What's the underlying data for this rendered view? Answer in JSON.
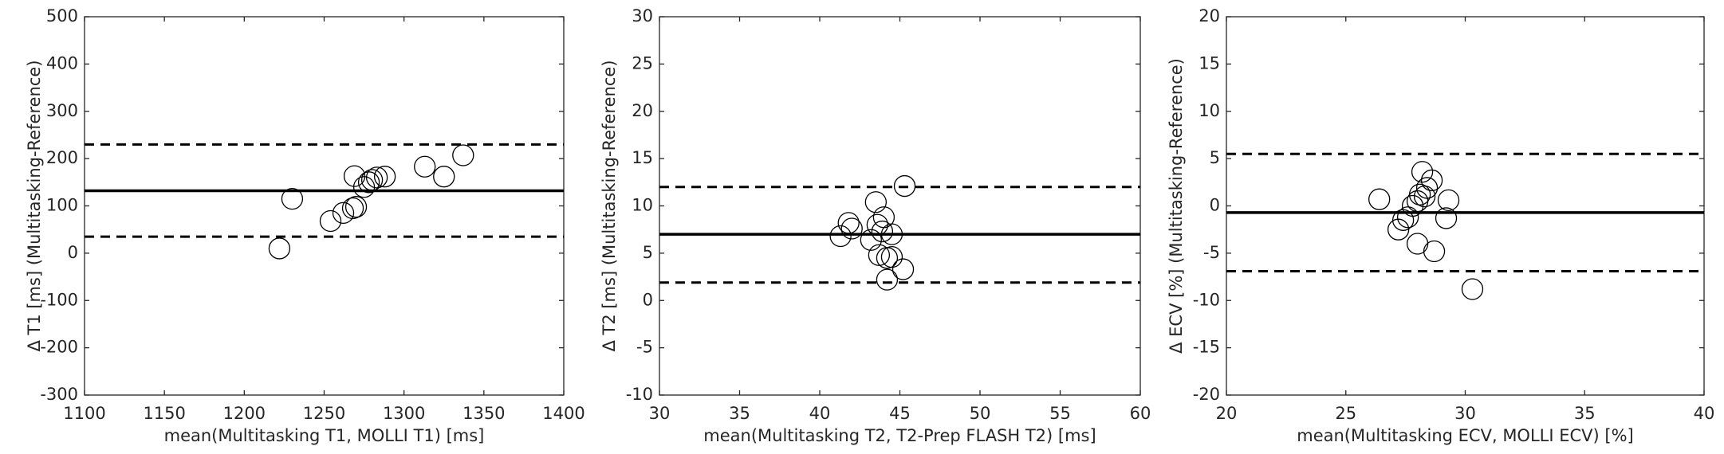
{
  "chart_data": [
    {
      "type": "scatter",
      "xlabel": "mean(Multitasking T1, MOLLI T1) [ms]",
      "ylabel": "Δ T1 [ms] (Multitasking-Reference)",
      "x": [
        1222,
        1230,
        1254,
        1262,
        1268,
        1270,
        1269,
        1275,
        1278,
        1280,
        1283,
        1288,
        1313,
        1325,
        1337
      ],
      "values": [
        10,
        115,
        68,
        85,
        95,
        98,
        163,
        140,
        150,
        155,
        160,
        162,
        183,
        162,
        207
      ],
      "mean": 132,
      "upper_loa": 230,
      "lower_loa": 35,
      "xlim": [
        1100,
        1400
      ],
      "xticks": [
        1100,
        1150,
        1200,
        1250,
        1300,
        1350,
        1400
      ],
      "ylim": [
        -300,
        500
      ],
      "yticks": [
        -300,
        -200,
        -100,
        0,
        100,
        200,
        300,
        400,
        500
      ]
    },
    {
      "type": "scatter",
      "xlabel": "mean(Multitasking T2, T2-Prep FLASH T2) [ms]",
      "ylabel": "Δ T2 [ms] (Multitasking-Reference)",
      "x": [
        41.3,
        41.8,
        42,
        43.2,
        43.5,
        43.6,
        43.7,
        43.9,
        44,
        44.2,
        44.2,
        44.5,
        44.5,
        45.2,
        45.3
      ],
      "values": [
        6.8,
        8.2,
        7.6,
        6.4,
        10.4,
        8,
        4.8,
        7.3,
        8.8,
        2.2,
        4.5,
        7,
        4.6,
        3.3,
        12.1
      ],
      "mean": 7,
      "upper_loa": 12,
      "lower_loa": 1.9,
      "xlim": [
        30,
        60
      ],
      "xticks": [
        30,
        35,
        40,
        45,
        50,
        55,
        60
      ],
      "ylim": [
        -10,
        30
      ],
      "yticks": [
        -10,
        -5,
        0,
        5,
        10,
        15,
        20,
        25,
        30
      ]
    },
    {
      "type": "scatter",
      "xlabel": "mean(Multitasking ECV, MOLLI ECV) [%]",
      "ylabel": "Δ ECV [%] (Multitasking-Reference)",
      "x": [
        26.4,
        27.2,
        27.4,
        27.6,
        27.8,
        28,
        28,
        28.1,
        28.2,
        28.3,
        28.4,
        28.6,
        28.7,
        29.2,
        29.3,
        30.3
      ],
      "values": [
        0.7,
        -2.5,
        -1.5,
        -1.2,
        0,
        -4,
        0.5,
        1.2,
        3.6,
        1,
        1.9,
        2.7,
        -4.8,
        -1.3,
        0.6,
        -8.8
      ],
      "mean": -0.7,
      "upper_loa": 5.5,
      "lower_loa": -6.9,
      "xlim": [
        20,
        40
      ],
      "xticks": [
        20,
        25,
        30,
        35,
        40
      ],
      "ylim": [
        -20,
        20
      ],
      "yticks": [
        -20,
        -15,
        -10,
        -5,
        0,
        5,
        10,
        15,
        20
      ]
    }
  ]
}
